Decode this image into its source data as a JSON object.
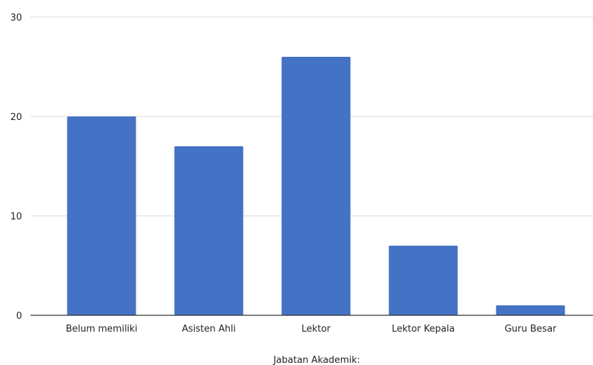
{
  "chart_data": {
    "type": "bar",
    "categories": [
      "Belum memiliki",
      "Asisten Ahli",
      "Lektor",
      "Lektor Kepala",
      "Guru Besar"
    ],
    "values": [
      20,
      17,
      26,
      7,
      1
    ],
    "title": "",
    "xlabel": "Jabatan Akademik:",
    "ylabel": "",
    "ylim": [
      0,
      30
    ],
    "yticks": [
      0,
      10,
      20,
      30
    ],
    "grid": true,
    "bar_color": "#4472c4"
  }
}
